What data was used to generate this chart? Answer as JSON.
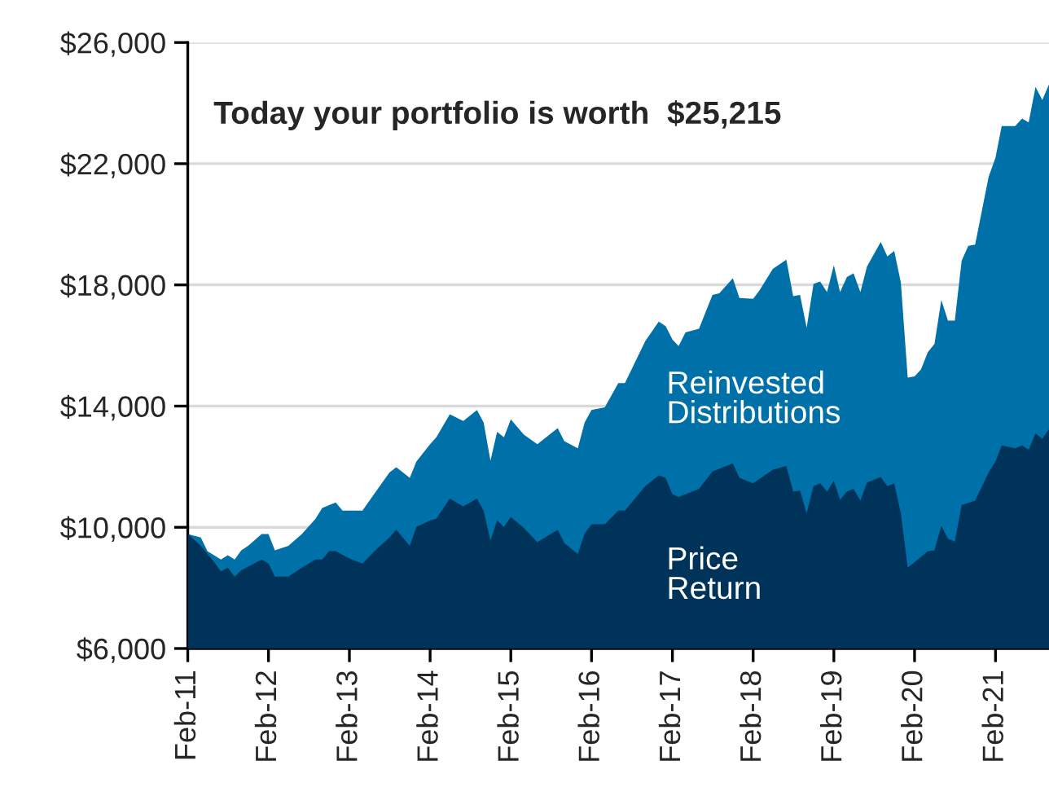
{
  "chart_data": {
    "type": "area",
    "title": "Today your portfolio is worth  $25,215",
    "ylim": [
      6000,
      26000
    ],
    "yticks": [
      {
        "value": 6000,
        "label": "$6,000"
      },
      {
        "value": 10000,
        "label": "$10,000"
      },
      {
        "value": 14000,
        "label": "$14,000"
      },
      {
        "value": 18000,
        "label": "$18,000"
      },
      {
        "value": 22000,
        "label": "$22,000"
      },
      {
        "value": 26000,
        "label": "$26,000"
      }
    ],
    "xlim": [
      "2011-02",
      "2021-10"
    ],
    "xticks": [
      {
        "value": "2011-02",
        "label": "Feb-11"
      },
      {
        "value": "2012-02",
        "label": "Feb-12"
      },
      {
        "value": "2013-02",
        "label": "Feb-13"
      },
      {
        "value": "2014-02",
        "label": "Feb-14"
      },
      {
        "value": "2015-02",
        "label": "Feb-15"
      },
      {
        "value": "2016-02",
        "label": "Feb-16"
      },
      {
        "value": "2017-02",
        "label": "Feb-17"
      },
      {
        "value": "2018-02",
        "label": "Feb-18"
      },
      {
        "value": "2019-02",
        "label": "Feb-19"
      },
      {
        "value": "2020-02",
        "label": "Feb-20"
      },
      {
        "value": "2021-02",
        "label": "Feb-21"
      }
    ],
    "grid": "y",
    "legend": false,
    "series": [
      {
        "name": "Reinvested Distributions",
        "color": "#0070a8",
        "x": [
          "2011-02",
          "2011-04",
          "2011-05",
          "2011-07",
          "2011-08",
          "2011-09",
          "2011-10",
          "2011-11",
          "2012-01",
          "2012-02",
          "2012-03",
          "2012-05",
          "2012-07",
          "2012-09",
          "2012-10",
          "2012-12",
          "2013-01",
          "2013-04",
          "2013-06",
          "2013-08",
          "2013-09",
          "2013-11",
          "2013-12",
          "2014-02",
          "2014-03",
          "2014-05",
          "2014-07",
          "2014-09",
          "2014-10",
          "2014-11",
          "2014-12",
          "2015-01",
          "2015-02",
          "2015-04",
          "2015-06",
          "2015-09",
          "2015-10",
          "2015-12",
          "2016-01",
          "2016-02",
          "2016-04",
          "2016-06",
          "2016-07",
          "2016-10",
          "2016-12",
          "2017-01",
          "2017-02",
          "2017-03",
          "2017-04",
          "2017-06",
          "2017-08",
          "2017-09",
          "2017-11",
          "2017-12",
          "2018-02",
          "2018-03",
          "2018-05",
          "2018-07",
          "2018-08",
          "2018-09",
          "2018-10",
          "2018-11",
          "2018-12",
          "2019-01",
          "2019-02",
          "2019-03",
          "2019-04",
          "2019-05",
          "2019-06",
          "2019-07",
          "2019-09",
          "2019-10",
          "2019-11",
          "2019-12",
          "2020-01",
          "2020-02",
          "2020-03",
          "2020-04",
          "2020-05",
          "2020-06",
          "2020-07",
          "2020-08",
          "2020-09",
          "2020-10",
          "2020-11",
          "2021-01",
          "2021-02",
          "2021-03",
          "2021-05",
          "2021-06",
          "2021-07",
          "2021-08",
          "2021-09",
          "2021-10"
        ],
        "values": [
          9780,
          9660,
          9210,
          8940,
          9080,
          8940,
          9240,
          9390,
          9780,
          9780,
          9240,
          9390,
          9780,
          10280,
          10640,
          10820,
          10550,
          10550,
          11180,
          11810,
          11980,
          11630,
          12170,
          12740,
          12970,
          13730,
          13510,
          13870,
          13460,
          12200,
          13150,
          12970,
          13560,
          13060,
          12740,
          13270,
          12840,
          12610,
          13460,
          13870,
          13960,
          14760,
          14760,
          16140,
          16790,
          16640,
          16200,
          15980,
          16430,
          16550,
          17670,
          17720,
          18220,
          17570,
          17540,
          17810,
          18530,
          18830,
          17630,
          17670,
          16590,
          18030,
          18110,
          17760,
          18650,
          17760,
          18260,
          18380,
          17760,
          18610,
          19420,
          18940,
          19120,
          18080,
          14940,
          14980,
          15210,
          15780,
          16050,
          17500,
          16820,
          16820,
          18800,
          19290,
          19330,
          21570,
          22200,
          23240,
          23240,
          23490,
          23360,
          24530,
          24100,
          24620
        ]
      },
      {
        "name": "Price Return",
        "color": "#00335a",
        "x": [
          "2011-02",
          "2011-04",
          "2011-06",
          "2011-07",
          "2011-08",
          "2011-09",
          "2011-10",
          "2012-01",
          "2012-02",
          "2012-03",
          "2012-05",
          "2012-07",
          "2012-09",
          "2012-10",
          "2012-11",
          "2012-12",
          "2013-02",
          "2013-04",
          "2013-06",
          "2013-08",
          "2013-09",
          "2013-11",
          "2013-12",
          "2014-02",
          "2014-03",
          "2014-05",
          "2014-07",
          "2014-09",
          "2014-10",
          "2014-11",
          "2014-12",
          "2015-01",
          "2015-02",
          "2015-04",
          "2015-06",
          "2015-09",
          "2015-10",
          "2015-12",
          "2016-01",
          "2016-02",
          "2016-04",
          "2016-06",
          "2016-07",
          "2016-10",
          "2016-12",
          "2017-01",
          "2017-02",
          "2017-03",
          "2017-06",
          "2017-08",
          "2017-11",
          "2017-12",
          "2018-02",
          "2018-05",
          "2018-07",
          "2018-08",
          "2018-09",
          "2018-10",
          "2018-11",
          "2018-12",
          "2019-01",
          "2019-02",
          "2019-03",
          "2019-04",
          "2019-05",
          "2019-06",
          "2019-07",
          "2019-09",
          "2019-10",
          "2019-11",
          "2019-12",
          "2020-01",
          "2020-02",
          "2020-04",
          "2020-05",
          "2020-06",
          "2020-07",
          "2020-08",
          "2020-09",
          "2020-11",
          "2021-01",
          "2021-02",
          "2021-03",
          "2021-05",
          "2021-06",
          "2021-07",
          "2021-08",
          "2021-09",
          "2021-10"
        ],
        "values": [
          9780,
          9390,
          8850,
          8540,
          8670,
          8370,
          8580,
          8940,
          8800,
          8370,
          8370,
          8670,
          8940,
          8940,
          9210,
          9210,
          8970,
          8800,
          9260,
          9660,
          9920,
          9390,
          10010,
          10230,
          10280,
          10950,
          10690,
          10950,
          10550,
          9560,
          10230,
          10010,
          10340,
          9980,
          9510,
          9920,
          9480,
          9120,
          9800,
          10100,
          10100,
          10550,
          10550,
          11360,
          11710,
          11630,
          11090,
          11000,
          11270,
          11840,
          12110,
          11630,
          11450,
          11900,
          12020,
          11180,
          11210,
          10460,
          11360,
          11450,
          11180,
          11540,
          10910,
          11180,
          11270,
          10880,
          11480,
          11660,
          11360,
          11450,
          10460,
          8670,
          8850,
          9210,
          9240,
          10050,
          9620,
          9530,
          10730,
          10880,
          11810,
          12170,
          12700,
          12610,
          12700,
          12560,
          13100,
          12920,
          13240
        ]
      }
    ]
  }
}
